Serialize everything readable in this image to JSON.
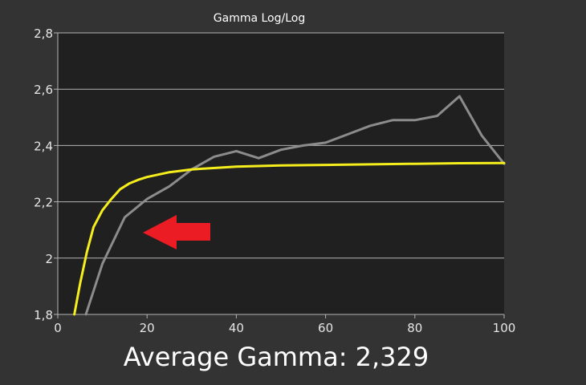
{
  "chart_data": {
    "type": "line",
    "title": "Gamma Log/Log",
    "xlabel": "",
    "ylabel": "",
    "xlim": [
      0,
      100
    ],
    "ylim": [
      1.8,
      2.8
    ],
    "x_ticks": [
      0,
      20,
      40,
      60,
      80,
      100
    ],
    "x_tick_labels": [
      "0",
      "20",
      "40",
      "60",
      "80",
      "100"
    ],
    "y_ticks": [
      1.8,
      2.0,
      2.2,
      2.4,
      2.6,
      2.8
    ],
    "y_tick_labels": [
      "1,8",
      "2",
      "2,2",
      "2,4",
      "2,6",
      "2,8"
    ],
    "grid": true,
    "series": [
      {
        "color": "#f5ee1c",
        "x": [
          3.7,
          5,
          6.5,
          8,
          10,
          12,
          14,
          16,
          18,
          20,
          25,
          30,
          40,
          50,
          60,
          70,
          80,
          90,
          100
        ],
        "values": [
          1.8,
          1.91,
          2.02,
          2.11,
          2.17,
          2.21,
          2.245,
          2.265,
          2.278,
          2.288,
          2.305,
          2.315,
          2.325,
          2.329,
          2.331,
          2.333,
          2.335,
          2.337,
          2.338
        ]
      },
      {
        "color": "#8c8c8c",
        "x": [
          6.3,
          10,
          15,
          20,
          25,
          30,
          35,
          40,
          45,
          50,
          55,
          60,
          65,
          70,
          75,
          80,
          85,
          90,
          95,
          100
        ],
        "values": [
          1.8,
          1.98,
          2.145,
          2.21,
          2.255,
          2.315,
          2.36,
          2.38,
          2.355,
          2.385,
          2.4,
          2.41,
          2.44,
          2.47,
          2.49,
          2.49,
          2.505,
          2.575,
          2.435,
          2.335
        ]
      }
    ],
    "annotations": [
      {
        "type": "arrow",
        "color": "#ec1c24",
        "direction": "left"
      }
    ]
  },
  "caption": "Average Gamma: 2,329",
  "colors": {
    "background": "#333333",
    "plot_area": "#202020",
    "grid": "#b4b4b4",
    "text": "#ffffff",
    "tick_text": "#e6e6e6"
  }
}
